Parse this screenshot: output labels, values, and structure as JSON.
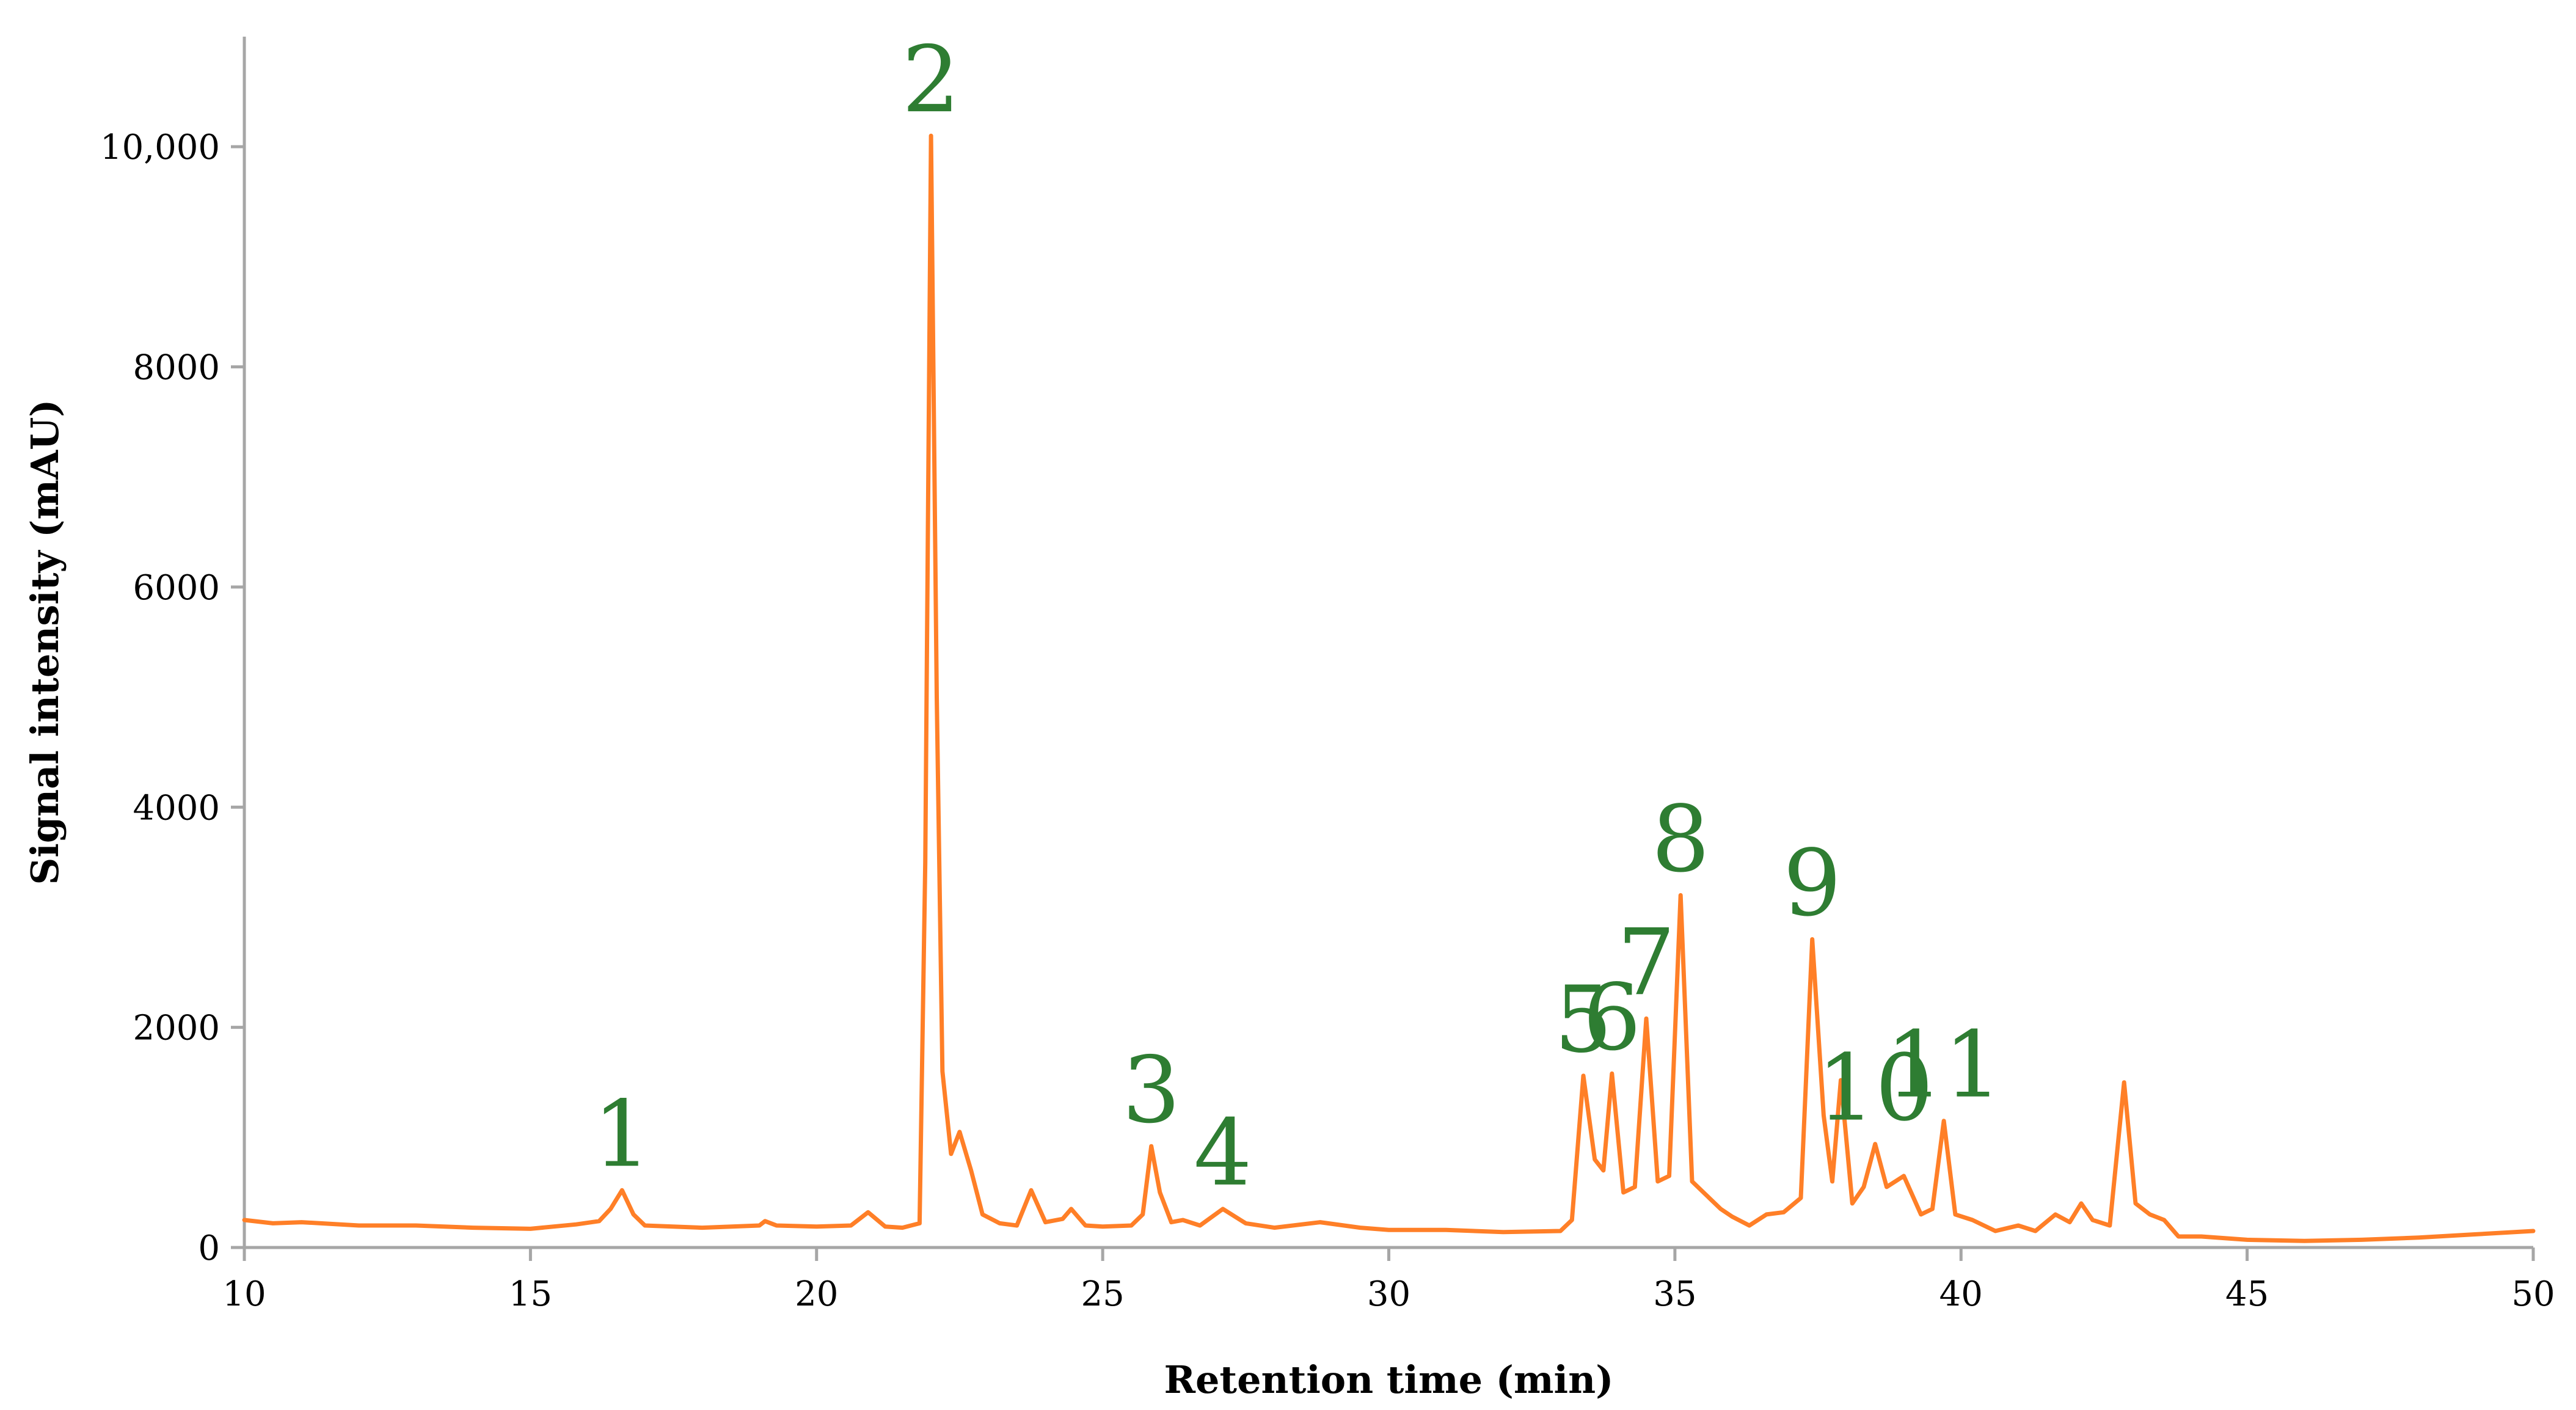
{
  "chart_data": {
    "type": "line",
    "xlabel": "Retention time (min)",
    "ylabel": "Signal intensity (mAU)",
    "xlim": [
      10,
      50
    ],
    "ylim": [
      0,
      11000
    ],
    "x_ticks": [
      {
        "value": 10,
        "label": "10"
      },
      {
        "value": 15,
        "label": "15"
      },
      {
        "value": 20,
        "label": "20"
      },
      {
        "value": 25,
        "label": "25"
      },
      {
        "value": 30,
        "label": "30"
      },
      {
        "value": 35,
        "label": "35"
      },
      {
        "value": 40,
        "label": "40"
      },
      {
        "value": 45,
        "label": "45"
      },
      {
        "value": 50,
        "label": "50"
      }
    ],
    "y_ticks": [
      {
        "value": 0,
        "label": "0"
      },
      {
        "value": 2000,
        "label": "2000"
      },
      {
        "value": 4000,
        "label": "4000"
      },
      {
        "value": 6000,
        "label": "6000"
      },
      {
        "value": 8000,
        "label": "8000"
      },
      {
        "value": 10000,
        "label": "10,000"
      }
    ],
    "grid": false,
    "legend": "none",
    "colors": {
      "trace": "#ff7f27",
      "peak_labels": "#2e7d32",
      "axis": "#a6a6a6"
    },
    "series": [
      {
        "x": [
          10.0,
          10.5,
          11.0,
          12.0,
          13.0,
          14.0,
          15.0,
          15.8,
          16.2,
          16.4,
          16.6,
          16.8,
          17.0,
          18.0,
          19.0,
          19.1,
          19.3,
          20.0,
          20.6,
          20.9,
          21.2,
          21.5,
          21.8,
          21.9,
          22.0,
          22.1,
          22.2,
          22.35,
          22.5,
          22.7,
          22.9,
          23.2,
          23.5,
          23.75,
          24.0,
          24.3,
          24.45,
          24.7,
          25.0,
          25.5,
          25.7,
          25.85,
          26.0,
          26.2,
          26.4,
          26.7,
          27.1,
          27.5,
          28.0,
          28.8,
          29.5,
          30.0,
          31.0,
          32.0,
          33.0,
          33.2,
          33.4,
          33.6,
          33.75,
          33.9,
          34.1,
          34.3,
          34.5,
          34.7,
          34.9,
          35.1,
          35.3,
          35.5,
          35.8,
          36.0,
          36.3,
          36.6,
          36.9,
          37.2,
          37.4,
          37.6,
          37.75,
          37.9,
          38.1,
          38.3,
          38.5,
          38.7,
          39.0,
          39.3,
          39.5,
          39.7,
          39.9,
          40.2,
          40.6,
          41.0,
          41.3,
          41.65,
          41.9,
          42.1,
          42.3,
          42.6,
          42.85,
          43.05,
          43.3,
          43.55,
          43.8,
          44.2,
          45.0,
          46.0,
          47.0,
          48.0,
          49.0,
          50.0
        ],
        "values": [
          250,
          220,
          230,
          200,
          200,
          180,
          170,
          210,
          240,
          350,
          520,
          300,
          200,
          180,
          200,
          240,
          200,
          190,
          200,
          320,
          190,
          180,
          220,
          3500,
          10100,
          5000,
          1600,
          850,
          1050,
          700,
          300,
          220,
          200,
          520,
          230,
          260,
          350,
          200,
          190,
          200,
          300,
          920,
          500,
          230,
          250,
          200,
          350,
          220,
          180,
          230,
          180,
          160,
          160,
          140,
          150,
          250,
          1560,
          800,
          700,
          1580,
          500,
          550,
          2080,
          600,
          650,
          3200,
          600,
          500,
          350,
          280,
          200,
          300,
          320,
          450,
          2800,
          1200,
          600,
          1520,
          400,
          550,
          940,
          550,
          650,
          300,
          350,
          1150,
          300,
          250,
          150,
          200,
          150,
          300,
          230,
          400,
          250,
          200,
          1500,
          400,
          300,
          250,
          100,
          100,
          70,
          60,
          70,
          90,
          120,
          150
        ]
      }
    ],
    "peak_labels": [
      {
        "text": "1",
        "x": 16.6,
        "y": 520
      },
      {
        "text": "2",
        "x": 22.0,
        "y": 10100
      },
      {
        "text": "3",
        "x": 25.85,
        "y": 920
      },
      {
        "text": "4",
        "x": 27.1,
        "y": 350
      },
      {
        "text": "5",
        "x": 33.4,
        "y": 1560
      },
      {
        "text": "6",
        "x": 33.9,
        "y": 1580
      },
      {
        "text": "7",
        "x": 34.5,
        "y": 2080
      },
      {
        "text": "8",
        "x": 35.1,
        "y": 3200
      },
      {
        "text": "9",
        "x": 37.4,
        "y": 2800
      },
      {
        "text": "10",
        "x": 38.5,
        "y": 940
      },
      {
        "text": "11",
        "x": 39.7,
        "y": 1150
      }
    ]
  }
}
